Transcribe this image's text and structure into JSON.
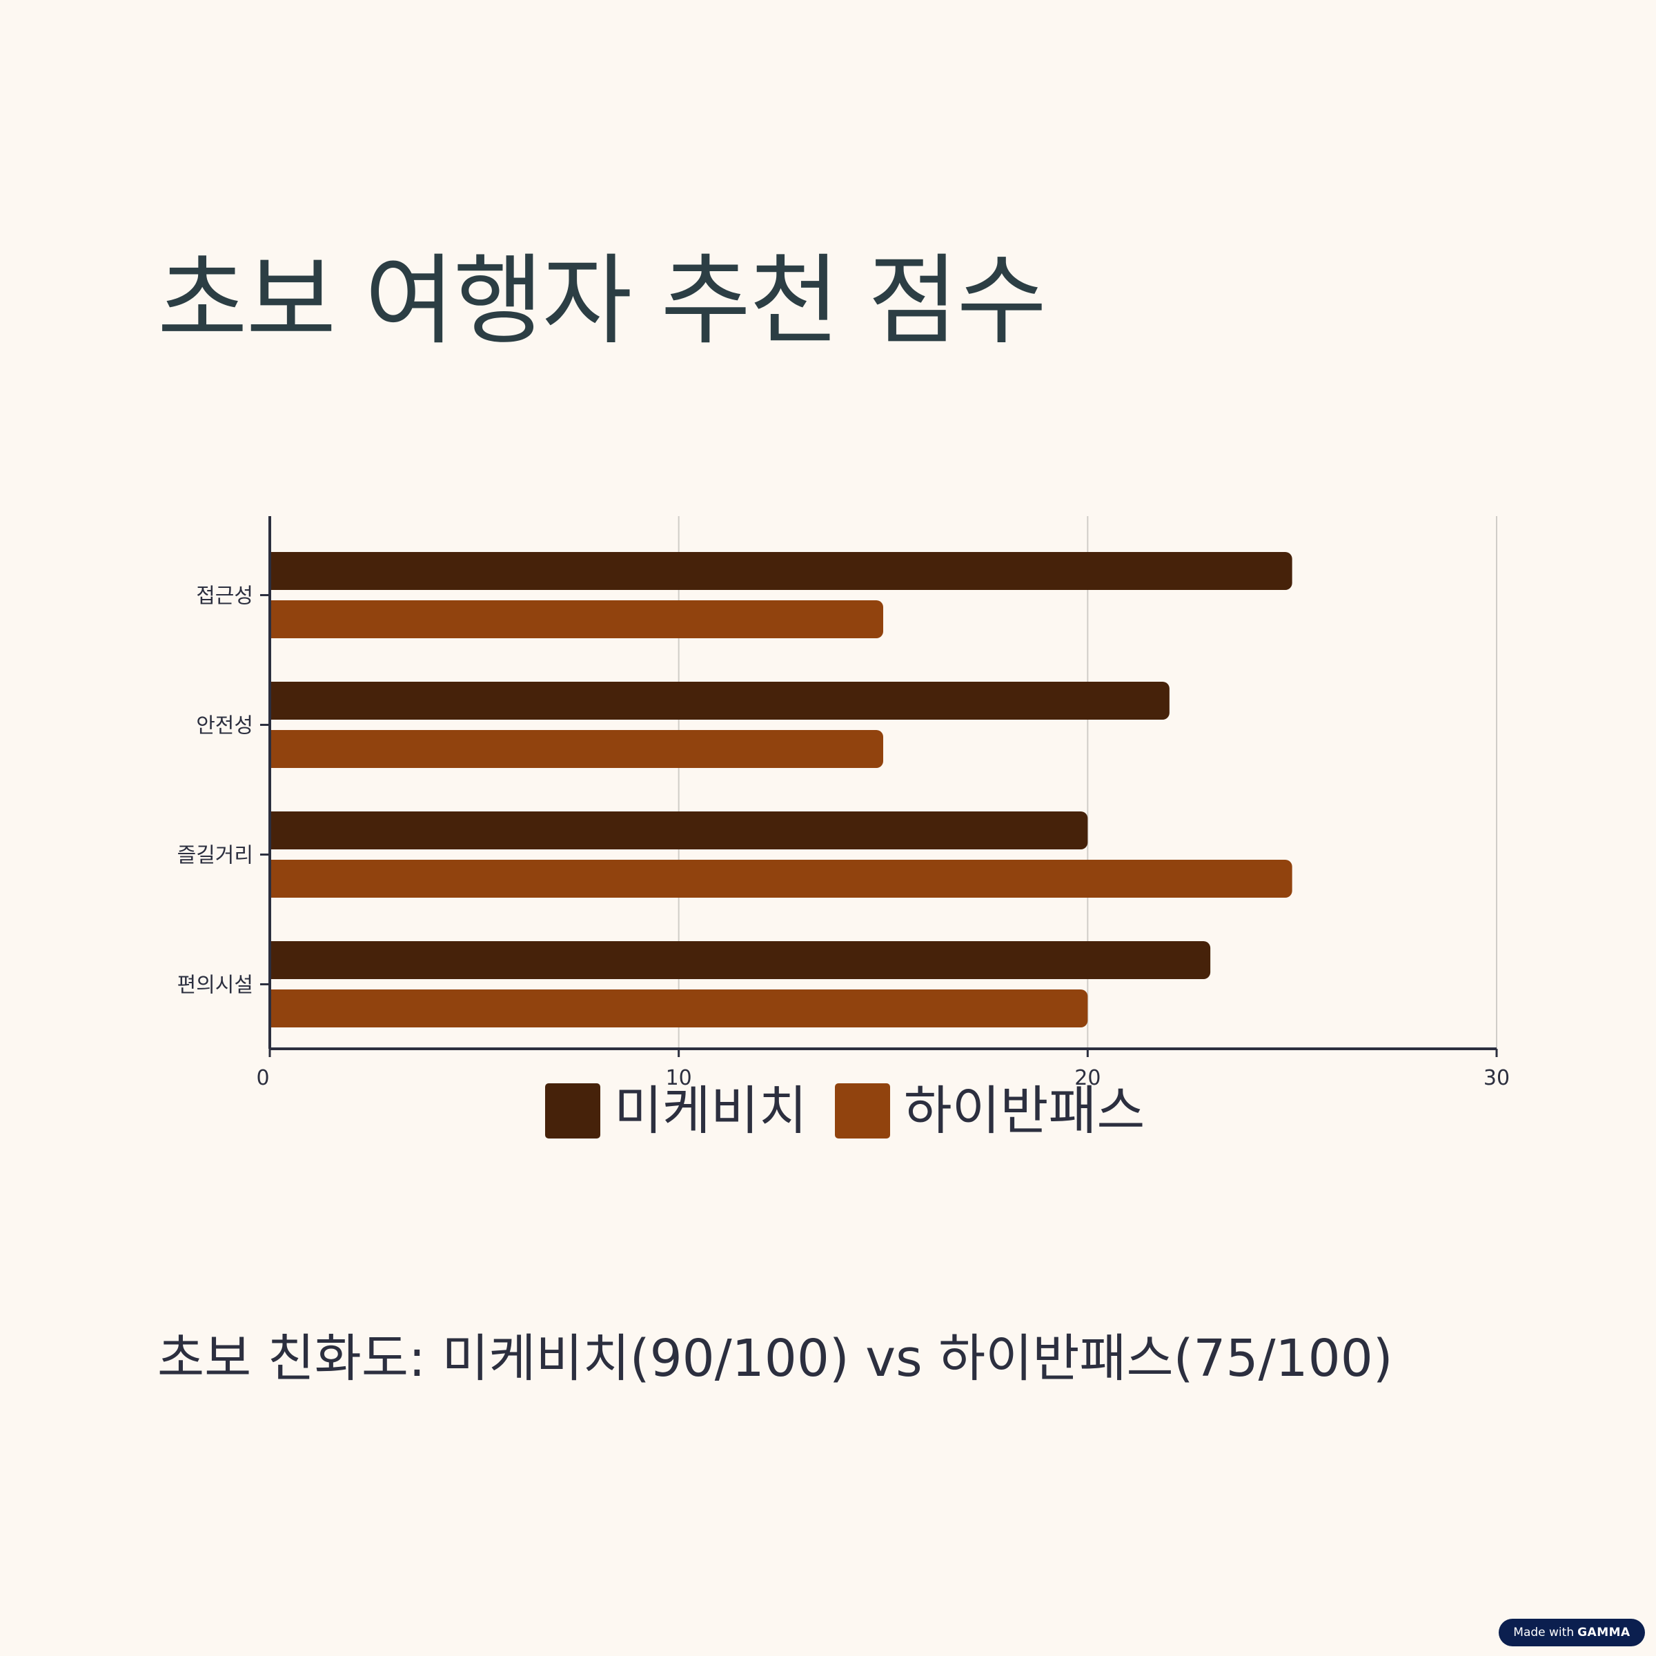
{
  "title": "초보 여행자 추천 점수",
  "summary": "초보 친화도: 미케비치(90/100) vs 하이반패스(75/100)",
  "badge": {
    "prefix": "Made with",
    "brand": "GAMMA"
  },
  "colors": {
    "background": "#fdf8f2",
    "series_1": "#46220a",
    "series_2": "#91430e",
    "axis": "#2c2f3f",
    "grid": "#d0cdc8",
    "title": "#2c3e44"
  },
  "chart_data": {
    "type": "bar",
    "orientation": "horizontal",
    "categories": [
      "접근성",
      "안전성",
      "즐길거리",
      "편의시설"
    ],
    "series": [
      {
        "name": "미케비치",
        "values": [
          25,
          22,
          20,
          23
        ]
      },
      {
        "name": "하이반패스",
        "values": [
          15,
          15,
          25,
          20
        ]
      }
    ],
    "xlim": [
      0,
      30
    ],
    "xticks": [
      "0",
      "10",
      "20",
      "30"
    ],
    "xlabel": "",
    "ylabel": "",
    "grid": "vertical",
    "legend_position": "bottom-center"
  }
}
